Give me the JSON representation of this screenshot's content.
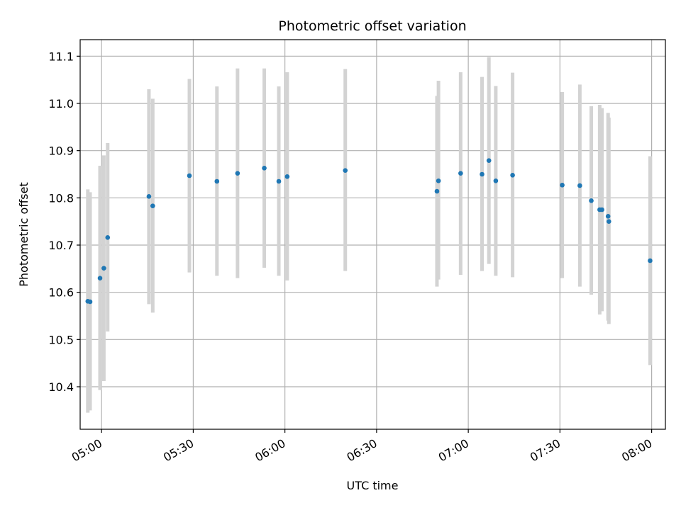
{
  "chart_data": {
    "type": "scatter",
    "title": "Photometric offset variation",
    "xlabel": "UTC time",
    "ylabel": "Photometric offset",
    "x_ticks": [
      "05:00",
      "05:30",
      "06:00",
      "06:30",
      "07:00",
      "07:30",
      "08:00"
    ],
    "y_ticks": [
      "10.4",
      "10.5",
      "10.6",
      "10.7",
      "10.8",
      "10.9",
      "11.0",
      "11.1"
    ],
    "xlim": [
      "04:53:00",
      "08:04:30"
    ],
    "ylim": [
      10.31,
      11.135
    ],
    "grid": true,
    "colors": {
      "point": "#1f77b4",
      "errorbar": "#d3d3d3",
      "grid": "#b0b0b0"
    },
    "points": [
      {
        "x": "04:55:30",
        "y": 10.581,
        "ymin": 10.345,
        "ymax": 10.818
      },
      {
        "x": "04:56:15",
        "y": 10.58,
        "ymin": 10.35,
        "ymax": 10.812
      },
      {
        "x": "04:59:30",
        "y": 10.63,
        "ymin": 10.393,
        "ymax": 10.868
      },
      {
        "x": "05:00:45",
        "y": 10.651,
        "ymin": 10.412,
        "ymax": 10.89
      },
      {
        "x": "05:02:00",
        "y": 10.716,
        "ymin": 10.517,
        "ymax": 10.916
      },
      {
        "x": "05:15:30",
        "y": 10.803,
        "ymin": 10.575,
        "ymax": 11.03
      },
      {
        "x": "05:16:45",
        "y": 10.783,
        "ymin": 10.557,
        "ymax": 11.01
      },
      {
        "x": "05:28:45",
        "y": 10.847,
        "ymin": 10.642,
        "ymax": 11.052
      },
      {
        "x": "05:37:45",
        "y": 10.835,
        "ymin": 10.635,
        "ymax": 11.036
      },
      {
        "x": "05:44:30",
        "y": 10.852,
        "ymin": 10.63,
        "ymax": 11.074
      },
      {
        "x": "05:53:15",
        "y": 10.863,
        "ymin": 10.652,
        "ymax": 11.074
      },
      {
        "x": "05:58:00",
        "y": 10.835,
        "ymin": 10.635,
        "ymax": 11.036
      },
      {
        "x": "06:00:45",
        "y": 10.845,
        "ymin": 10.625,
        "ymax": 11.066
      },
      {
        "x": "06:19:45",
        "y": 10.858,
        "ymin": 10.645,
        "ymax": 11.073
      },
      {
        "x": "06:49:45",
        "y": 10.814,
        "ymin": 10.612,
        "ymax": 11.016
      },
      {
        "x": "06:50:15",
        "y": 10.836,
        "ymin": 10.627,
        "ymax": 11.048
      },
      {
        "x": "06:57:30",
        "y": 10.852,
        "ymin": 10.637,
        "ymax": 11.066
      },
      {
        "x": "07:04:30",
        "y": 10.85,
        "ymin": 10.645,
        "ymax": 11.056
      },
      {
        "x": "07:06:45",
        "y": 10.879,
        "ymin": 10.66,
        "ymax": 11.098
      },
      {
        "x": "07:09:00",
        "y": 10.836,
        "ymin": 10.635,
        "ymax": 11.037
      },
      {
        "x": "07:14:30",
        "y": 10.848,
        "ymin": 10.632,
        "ymax": 11.065
      },
      {
        "x": "07:30:45",
        "y": 10.827,
        "ymin": 10.63,
        "ymax": 11.024
      },
      {
        "x": "07:36:30",
        "y": 10.826,
        "ymin": 10.612,
        "ymax": 11.04
      },
      {
        "x": "07:40:15",
        "y": 10.794,
        "ymin": 10.595,
        "ymax": 10.994
      },
      {
        "x": "07:43:00",
        "y": 10.775,
        "ymin": 10.553,
        "ymax": 10.997
      },
      {
        "x": "07:43:45",
        "y": 10.775,
        "ymin": 10.56,
        "ymax": 10.99
      },
      {
        "x": "07:45:45",
        "y": 10.761,
        "ymin": 10.54,
        "ymax": 10.98
      },
      {
        "x": "07:46:00",
        "y": 10.75,
        "ymin": 10.533,
        "ymax": 10.97
      },
      {
        "x": "07:59:30",
        "y": 10.667,
        "ymin": 10.446,
        "ymax": 10.888
      }
    ]
  }
}
